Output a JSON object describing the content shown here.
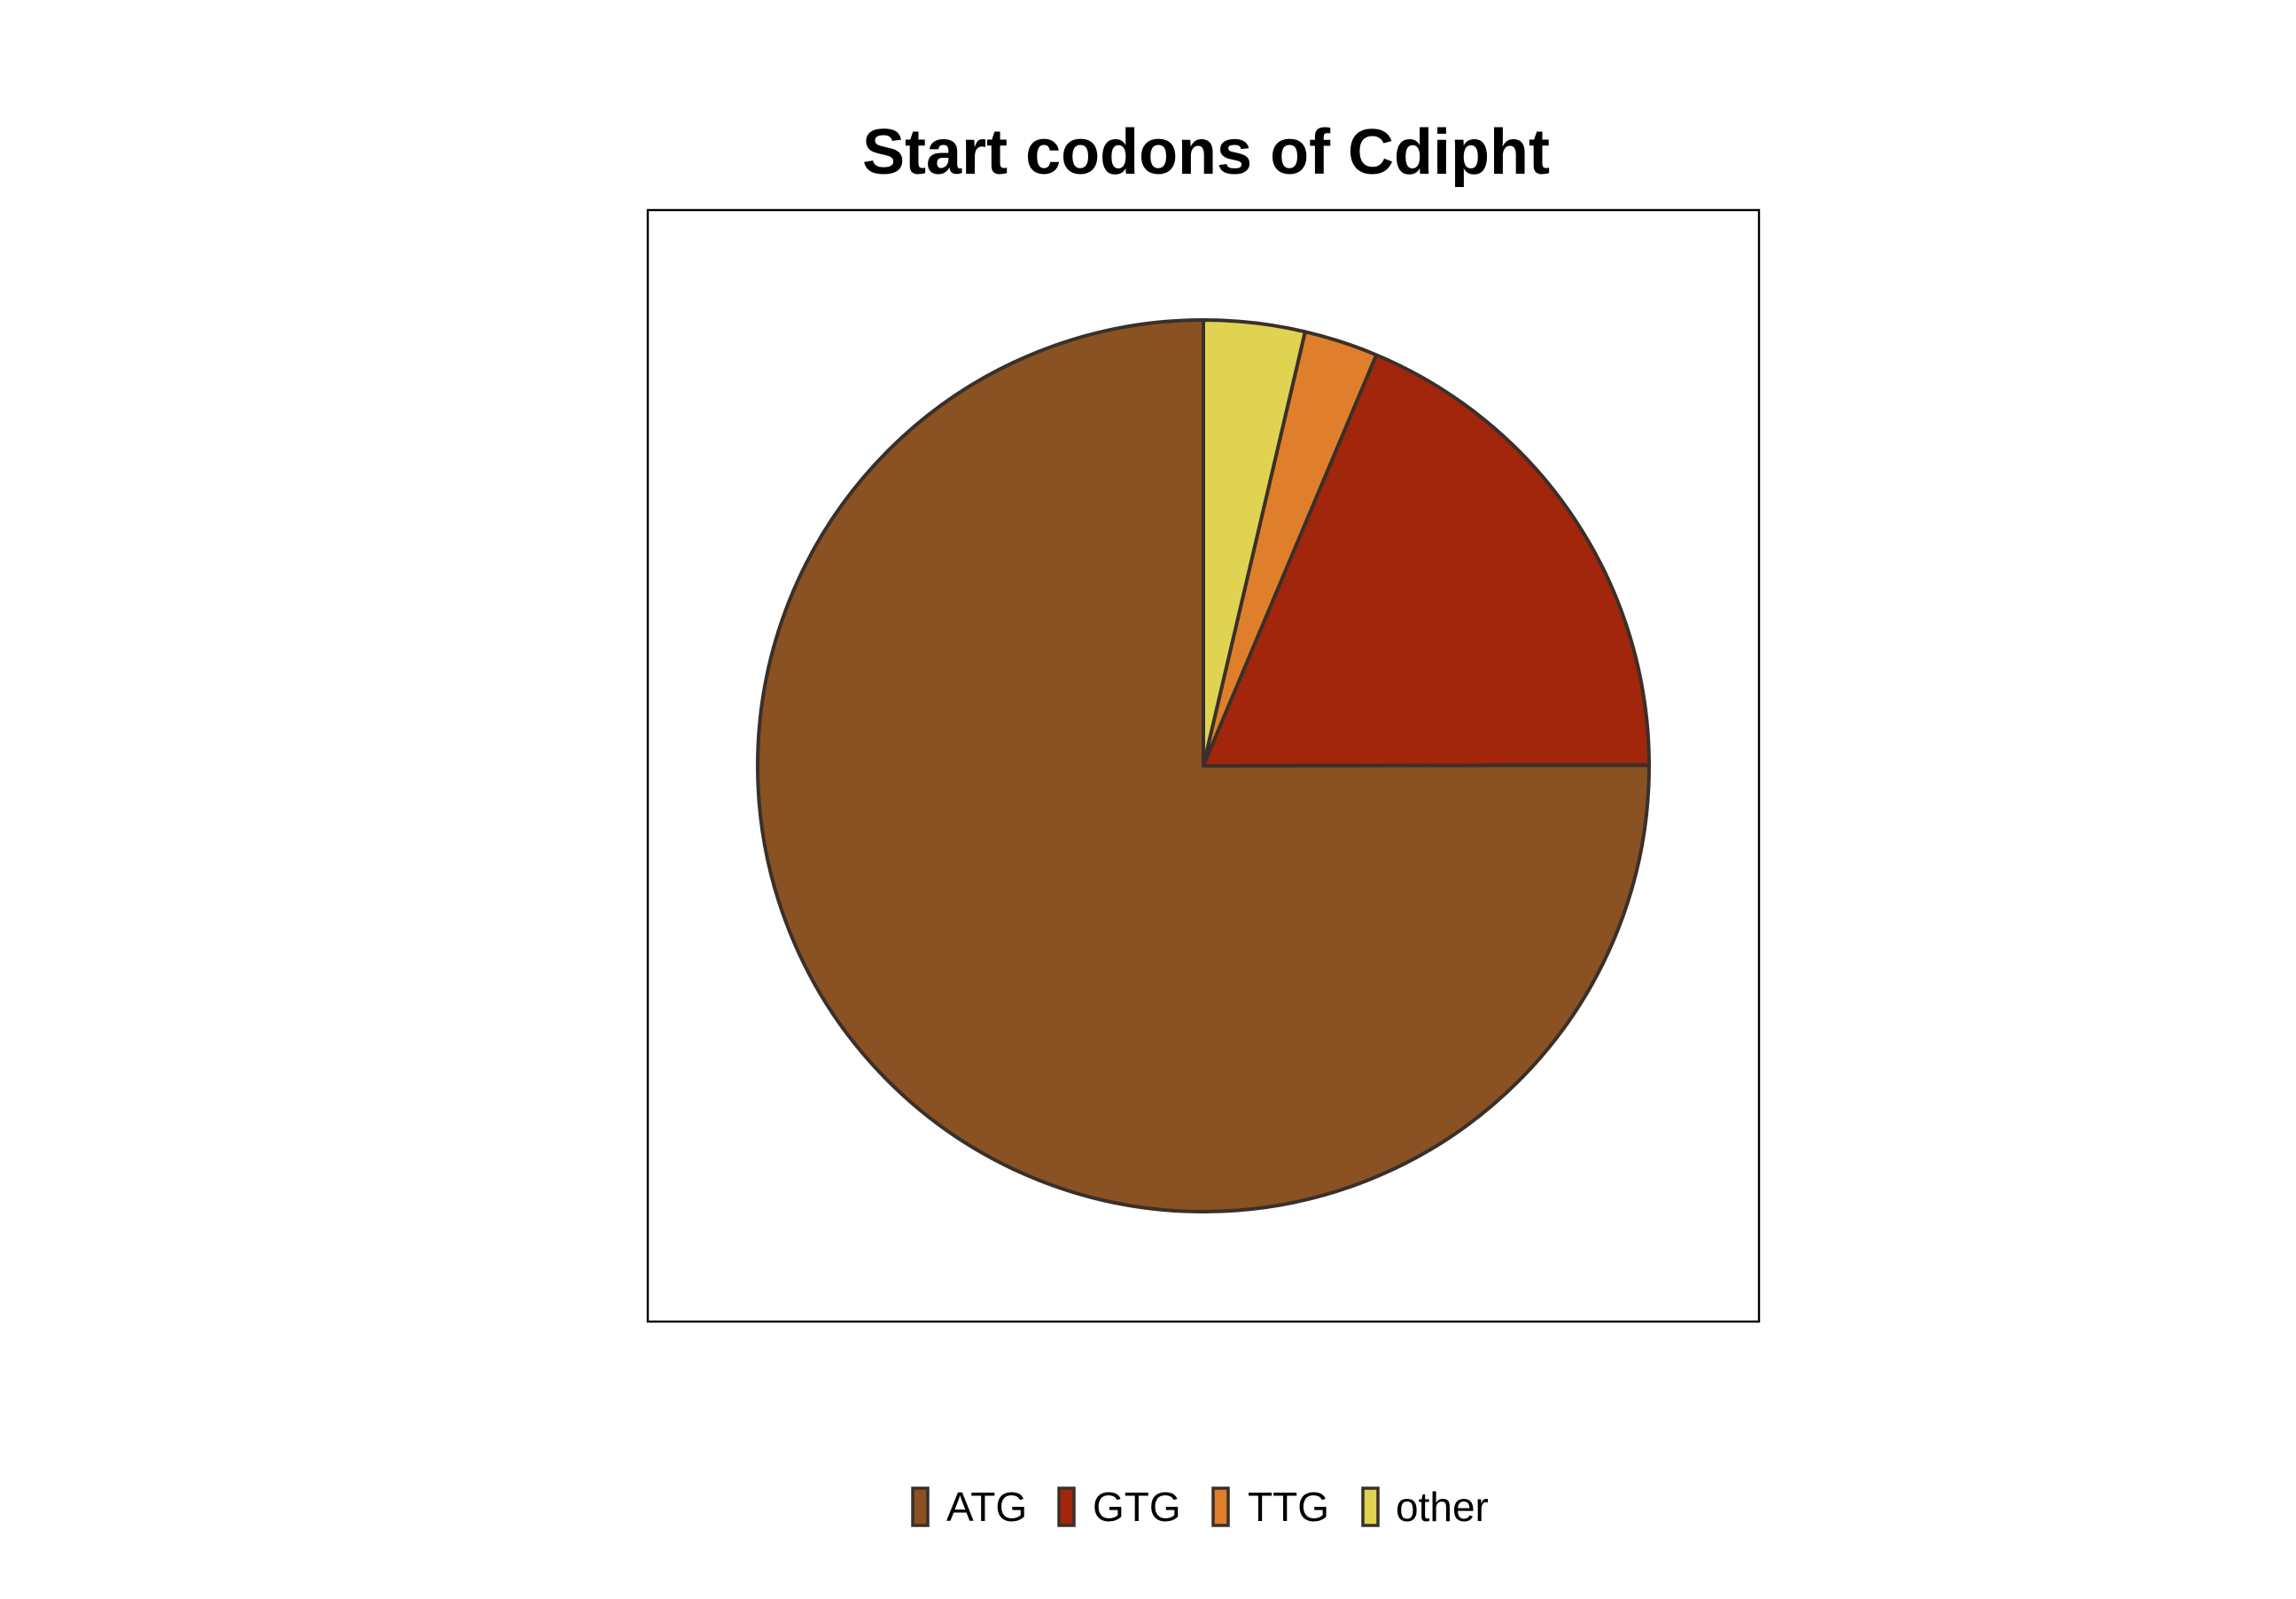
{
  "chart_data": {
    "type": "pie",
    "title": "Start codons of Cdipht",
    "categories": [
      "ATG",
      "GTG",
      "TTG",
      "other"
    ],
    "values": [
      75.7,
      18.8,
      2.7,
      3.7
    ],
    "units": "percent",
    "colors": [
      "#8A5123",
      "#A1260B",
      "#E07F2B",
      "#E0D352"
    ],
    "start_angle": "12 o'clock",
    "slice_order": [
      "other",
      "TTG",
      "GTG",
      "ATG"
    ],
    "direction": "clockwise",
    "legend_position": "bottom",
    "grid": false
  }
}
